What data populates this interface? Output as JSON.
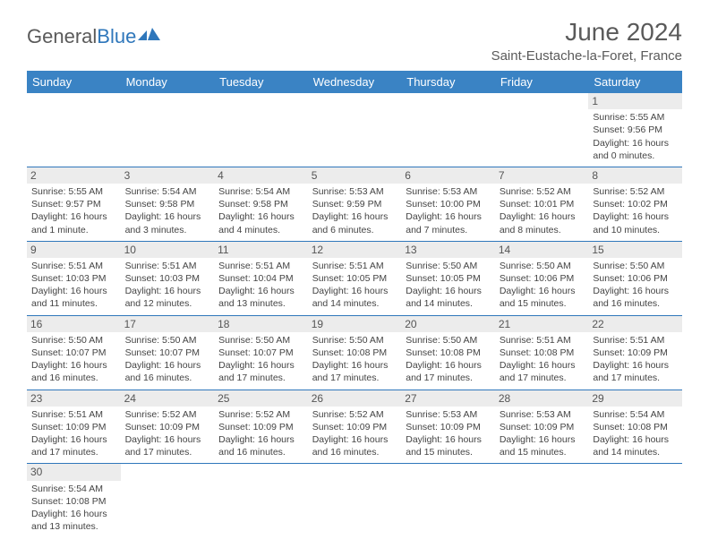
{
  "brand": {
    "part1": "General",
    "part2": "Blue"
  },
  "title": "June 2024",
  "location": "Saint-Eustache-la-Foret, France",
  "colors": {
    "header_bg": "#3a83c4",
    "header_text": "#ffffff",
    "row_divider": "#2f77bb",
    "daynum_bg": "#ececec",
    "text": "#444444",
    "title_text": "#5a5a5a"
  },
  "daysOfWeek": [
    "Sunday",
    "Monday",
    "Tuesday",
    "Wednesday",
    "Thursday",
    "Friday",
    "Saturday"
  ],
  "weeks": [
    [
      null,
      null,
      null,
      null,
      null,
      null,
      {
        "n": "1",
        "sr": "Sunrise: 5:55 AM",
        "ss": "Sunset: 9:56 PM",
        "d1": "Daylight: 16 hours",
        "d2": "and 0 minutes."
      }
    ],
    [
      {
        "n": "2",
        "sr": "Sunrise: 5:55 AM",
        "ss": "Sunset: 9:57 PM",
        "d1": "Daylight: 16 hours",
        "d2": "and 1 minute."
      },
      {
        "n": "3",
        "sr": "Sunrise: 5:54 AM",
        "ss": "Sunset: 9:58 PM",
        "d1": "Daylight: 16 hours",
        "d2": "and 3 minutes."
      },
      {
        "n": "4",
        "sr": "Sunrise: 5:54 AM",
        "ss": "Sunset: 9:58 PM",
        "d1": "Daylight: 16 hours",
        "d2": "and 4 minutes."
      },
      {
        "n": "5",
        "sr": "Sunrise: 5:53 AM",
        "ss": "Sunset: 9:59 PM",
        "d1": "Daylight: 16 hours",
        "d2": "and 6 minutes."
      },
      {
        "n": "6",
        "sr": "Sunrise: 5:53 AM",
        "ss": "Sunset: 10:00 PM",
        "d1": "Daylight: 16 hours",
        "d2": "and 7 minutes."
      },
      {
        "n": "7",
        "sr": "Sunrise: 5:52 AM",
        "ss": "Sunset: 10:01 PM",
        "d1": "Daylight: 16 hours",
        "d2": "and 8 minutes."
      },
      {
        "n": "8",
        "sr": "Sunrise: 5:52 AM",
        "ss": "Sunset: 10:02 PM",
        "d1": "Daylight: 16 hours",
        "d2": "and 10 minutes."
      }
    ],
    [
      {
        "n": "9",
        "sr": "Sunrise: 5:51 AM",
        "ss": "Sunset: 10:03 PM",
        "d1": "Daylight: 16 hours",
        "d2": "and 11 minutes."
      },
      {
        "n": "10",
        "sr": "Sunrise: 5:51 AM",
        "ss": "Sunset: 10:03 PM",
        "d1": "Daylight: 16 hours",
        "d2": "and 12 minutes."
      },
      {
        "n": "11",
        "sr": "Sunrise: 5:51 AM",
        "ss": "Sunset: 10:04 PM",
        "d1": "Daylight: 16 hours",
        "d2": "and 13 minutes."
      },
      {
        "n": "12",
        "sr": "Sunrise: 5:51 AM",
        "ss": "Sunset: 10:05 PM",
        "d1": "Daylight: 16 hours",
        "d2": "and 14 minutes."
      },
      {
        "n": "13",
        "sr": "Sunrise: 5:50 AM",
        "ss": "Sunset: 10:05 PM",
        "d1": "Daylight: 16 hours",
        "d2": "and 14 minutes."
      },
      {
        "n": "14",
        "sr": "Sunrise: 5:50 AM",
        "ss": "Sunset: 10:06 PM",
        "d1": "Daylight: 16 hours",
        "d2": "and 15 minutes."
      },
      {
        "n": "15",
        "sr": "Sunrise: 5:50 AM",
        "ss": "Sunset: 10:06 PM",
        "d1": "Daylight: 16 hours",
        "d2": "and 16 minutes."
      }
    ],
    [
      {
        "n": "16",
        "sr": "Sunrise: 5:50 AM",
        "ss": "Sunset: 10:07 PM",
        "d1": "Daylight: 16 hours",
        "d2": "and 16 minutes."
      },
      {
        "n": "17",
        "sr": "Sunrise: 5:50 AM",
        "ss": "Sunset: 10:07 PM",
        "d1": "Daylight: 16 hours",
        "d2": "and 16 minutes."
      },
      {
        "n": "18",
        "sr": "Sunrise: 5:50 AM",
        "ss": "Sunset: 10:07 PM",
        "d1": "Daylight: 16 hours",
        "d2": "and 17 minutes."
      },
      {
        "n": "19",
        "sr": "Sunrise: 5:50 AM",
        "ss": "Sunset: 10:08 PM",
        "d1": "Daylight: 16 hours",
        "d2": "and 17 minutes."
      },
      {
        "n": "20",
        "sr": "Sunrise: 5:50 AM",
        "ss": "Sunset: 10:08 PM",
        "d1": "Daylight: 16 hours",
        "d2": "and 17 minutes."
      },
      {
        "n": "21",
        "sr": "Sunrise: 5:51 AM",
        "ss": "Sunset: 10:08 PM",
        "d1": "Daylight: 16 hours",
        "d2": "and 17 minutes."
      },
      {
        "n": "22",
        "sr": "Sunrise: 5:51 AM",
        "ss": "Sunset: 10:09 PM",
        "d1": "Daylight: 16 hours",
        "d2": "and 17 minutes."
      }
    ],
    [
      {
        "n": "23",
        "sr": "Sunrise: 5:51 AM",
        "ss": "Sunset: 10:09 PM",
        "d1": "Daylight: 16 hours",
        "d2": "and 17 minutes."
      },
      {
        "n": "24",
        "sr": "Sunrise: 5:52 AM",
        "ss": "Sunset: 10:09 PM",
        "d1": "Daylight: 16 hours",
        "d2": "and 17 minutes."
      },
      {
        "n": "25",
        "sr": "Sunrise: 5:52 AM",
        "ss": "Sunset: 10:09 PM",
        "d1": "Daylight: 16 hours",
        "d2": "and 16 minutes."
      },
      {
        "n": "26",
        "sr": "Sunrise: 5:52 AM",
        "ss": "Sunset: 10:09 PM",
        "d1": "Daylight: 16 hours",
        "d2": "and 16 minutes."
      },
      {
        "n": "27",
        "sr": "Sunrise: 5:53 AM",
        "ss": "Sunset: 10:09 PM",
        "d1": "Daylight: 16 hours",
        "d2": "and 15 minutes."
      },
      {
        "n": "28",
        "sr": "Sunrise: 5:53 AM",
        "ss": "Sunset: 10:09 PM",
        "d1": "Daylight: 16 hours",
        "d2": "and 15 minutes."
      },
      {
        "n": "29",
        "sr": "Sunrise: 5:54 AM",
        "ss": "Sunset: 10:08 PM",
        "d1": "Daylight: 16 hours",
        "d2": "and 14 minutes."
      }
    ],
    [
      {
        "n": "30",
        "sr": "Sunrise: 5:54 AM",
        "ss": "Sunset: 10:08 PM",
        "d1": "Daylight: 16 hours",
        "d2": "and 13 minutes."
      },
      null,
      null,
      null,
      null,
      null,
      null
    ]
  ]
}
